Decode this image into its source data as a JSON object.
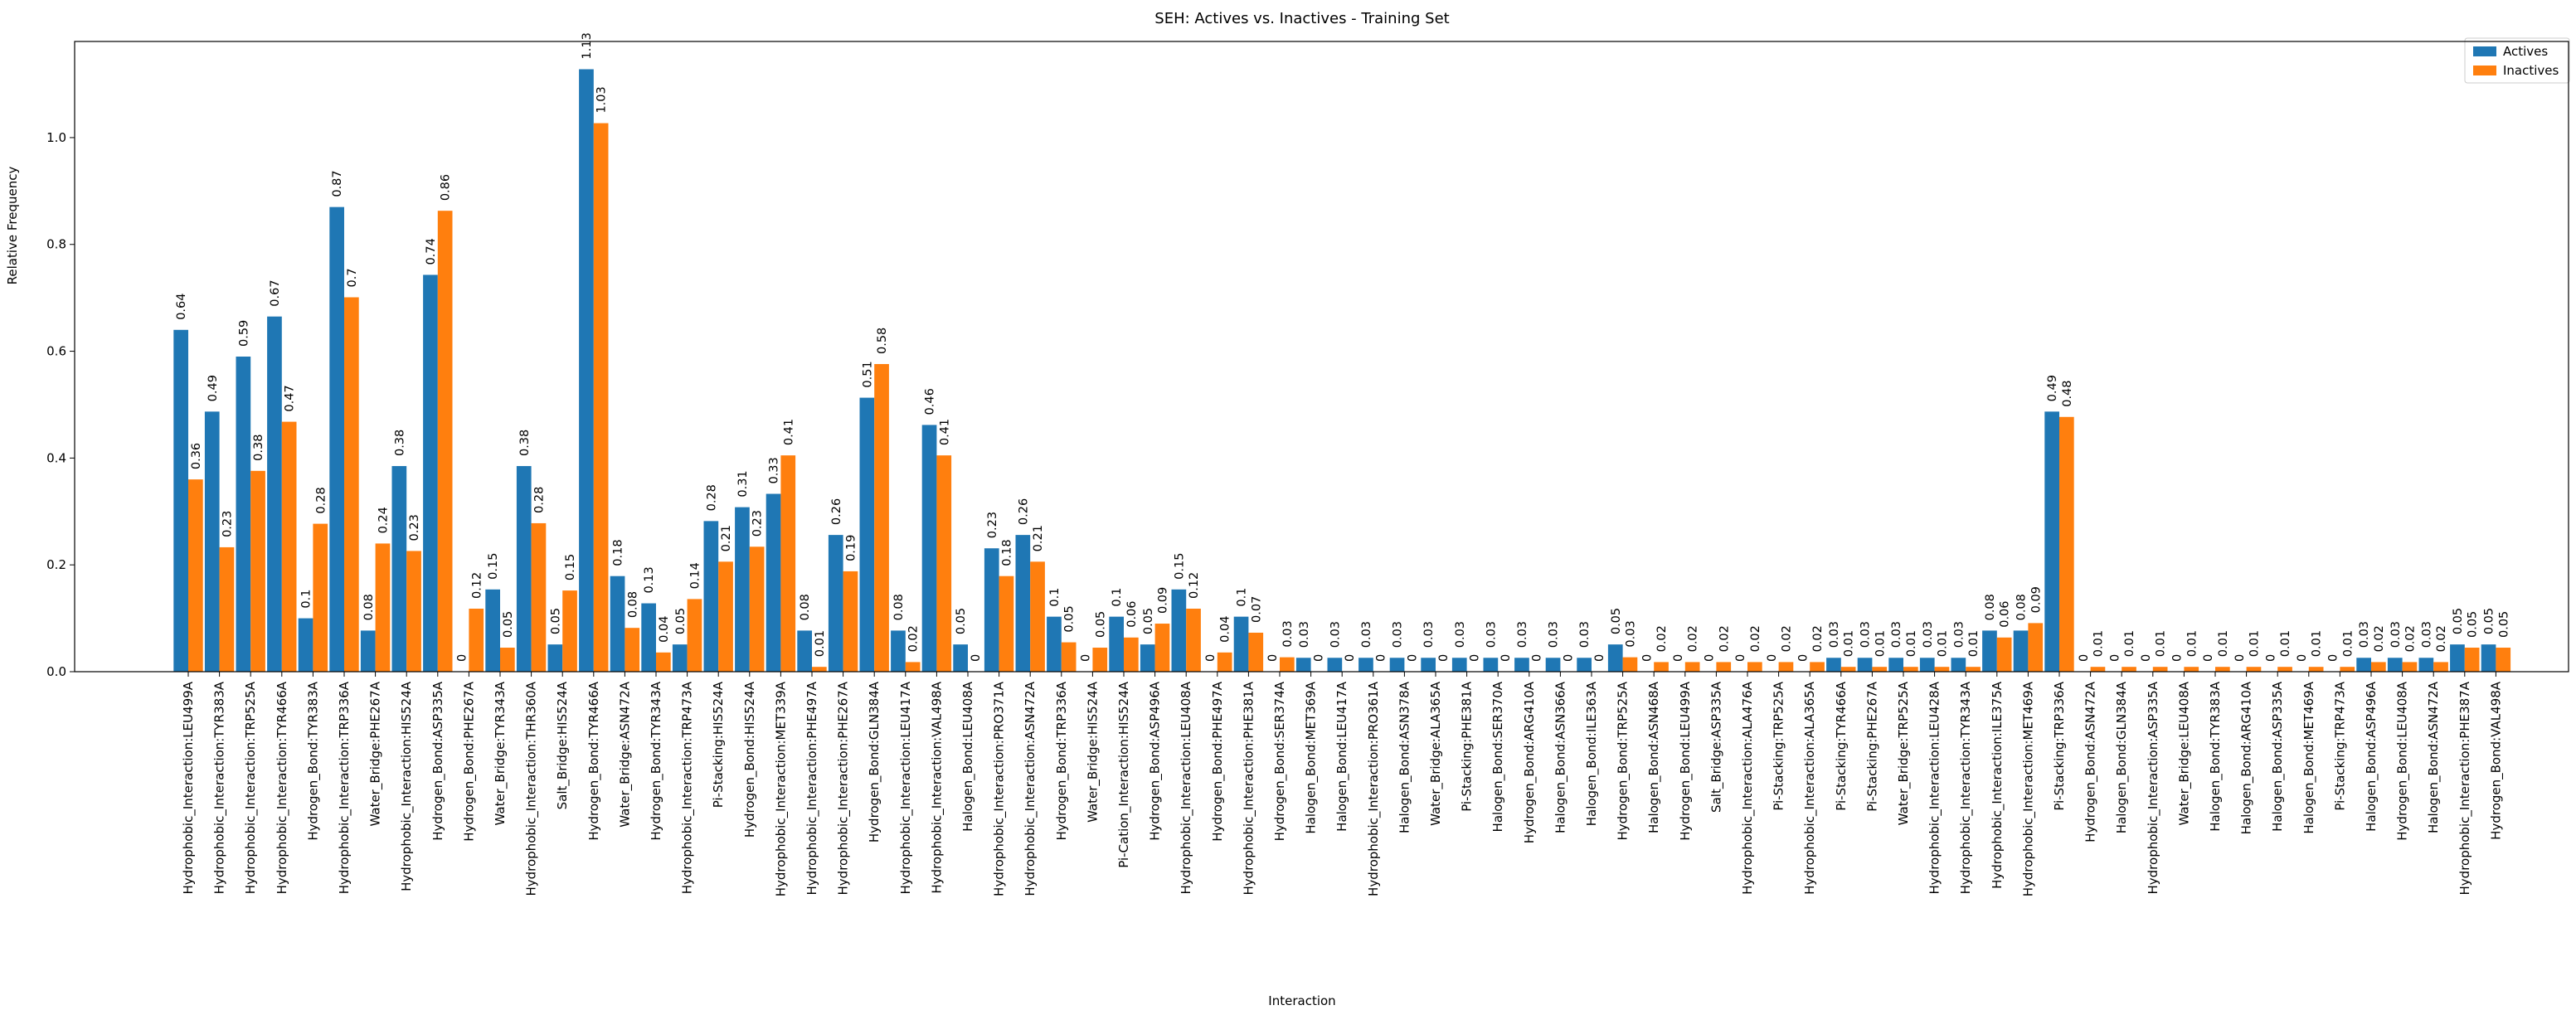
{
  "chart_data": {
    "type": "bar",
    "title": "SEH: Actives vs. Inactives - Training Set",
    "xlabel": "Interaction",
    "ylabel": "Relative Frequency",
    "ylim": [
      0,
      1.18
    ],
    "yticks": [
      "0.0",
      "0.2",
      "0.4",
      "0.6",
      "0.8",
      "1.0"
    ],
    "legend_position": "top-right",
    "colors": {
      "actives": "#1f77b4",
      "inactives": "#ff7f0e"
    },
    "categories": [
      "Hydrophobic_Interaction:LEU499A",
      "Hydrophobic_Interaction:TYR383A",
      "Hydrophobic_Interaction:TRP525A",
      "Hydrophobic_Interaction:TYR466A",
      "Hydrogen_Bond:TYR383A",
      "Hydrophobic_Interaction:TRP336A",
      "Water_Bridge:PHE267A",
      "Hydrophobic_Interaction:HIS524A",
      "Hydrogen_Bond:ASP335A",
      "Hydrogen_Bond:PHE267A",
      "Water_Bridge:TYR343A",
      "Hydrophobic_Interaction:THR360A",
      "Salt_Bridge:HIS524A",
      "Hydrogen_Bond:TYR466A",
      "Water_Bridge:ASN472A",
      "Hydrogen_Bond:TYR343A",
      "Hydrophobic_Interaction:TRP473A",
      "Pi-Stacking:HIS524A",
      "Hydrogen_Bond:HIS524A",
      "Hydrophobic_Interaction:MET339A",
      "Hydrophobic_Interaction:PHE497A",
      "Hydrophobic_Interaction:PHE267A",
      "Hydrogen_Bond:GLN384A",
      "Hydrophobic_Interaction:LEU417A",
      "Hydrophobic_Interaction:VAL498A",
      "Halogen_Bond:LEU408A",
      "Hydrophobic_Interaction:PRO371A",
      "Hydrophobic_Interaction:ASN472A",
      "Hydrogen_Bond:TRP336A",
      "Water_Bridge:HIS524A",
      "Pi-Cation_Interaction:HIS524A",
      "Hydrogen_Bond:ASP496A",
      "Hydrophobic_Interaction:LEU408A",
      "Hydrogen_Bond:PHE497A",
      "Hydrophobic_Interaction:PHE381A",
      "Hydrogen_Bond:SER374A",
      "Halogen_Bond:MET369A",
      "Halogen_Bond:LEU417A",
      "Hydrophobic_Interaction:PRO361A",
      "Halogen_Bond:ASN378A",
      "Water_Bridge:ALA365A",
      "Pi-Stacking:PHE381A",
      "Halogen_Bond:SER370A",
      "Hydrogen_Bond:ARG410A",
      "Halogen_Bond:ASN366A",
      "Halogen_Bond:ILE363A",
      "Hydrogen_Bond:TRP525A",
      "Halogen_Bond:ASN468A",
      "Hydrogen_Bond:LEU499A",
      "Salt_Bridge:ASP335A",
      "Hydrophobic_Interaction:ALA476A",
      "Pi-Stacking:TRP525A",
      "Hydrophobic_Interaction:ALA365A",
      "Pi-Stacking:TYR466A",
      "Pi-Stacking:PHE267A",
      "Water_Bridge:TRP525A",
      "Hydrophobic_Interaction:LEU428A",
      "Hydrophobic_Interaction:TYR343A",
      "Hydrophobic_Interaction:ILE375A",
      "Hydrophobic_Interaction:MET469A",
      "Pi-Stacking:TRP336A",
      "Hydrogen_Bond:ASN472A",
      "Halogen_Bond:GLN384A",
      "Hydrophobic_Interaction:ASP335A",
      "Water_Bridge:LEU408A",
      "Halogen_Bond:TYR383A",
      "Halogen_Bond:ARG410A",
      "Halogen_Bond:ASP335A",
      "Halogen_Bond:MET469A",
      "Pi-Stacking:TRP473A",
      "Halogen_Bond:ASP496A",
      "Hydrogen_Bond:LEU408A",
      "Halogen_Bond:ASN472A",
      "Hydrophobic_Interaction:PHE387A",
      "Hydrogen_Bond:VAL498A"
    ],
    "series": [
      {
        "name": "Actives",
        "values": [
          0.64,
          0.487,
          0.59,
          0.665,
          0.1,
          0.87,
          0.077,
          0.385,
          0.743,
          0,
          0.154,
          0.385,
          0.051,
          1.128,
          0.179,
          0.128,
          0.051,
          0.282,
          0.308,
          0.333,
          0.077,
          0.256,
          0.513,
          0.077,
          0.462,
          0.051,
          0.231,
          0.256,
          0.103,
          0,
          0.103,
          0.051,
          0.154,
          0,
          0.103,
          0,
          0.026,
          0.026,
          0.026,
          0.026,
          0.026,
          0.026,
          0.026,
          0.026,
          0.026,
          0.026,
          0.051,
          0,
          0,
          0,
          0,
          0,
          0,
          0.026,
          0.026,
          0.026,
          0.026,
          0.026,
          0.077,
          0.077,
          0.487,
          0,
          0,
          0,
          0,
          0,
          0,
          0,
          0,
          0,
          0.026,
          0.026,
          0.026,
          0.051,
          0.051
        ],
        "labels": [
          "0.64",
          "0.49",
          "0.59",
          "0.67",
          "0.1",
          "0.87",
          "0.08",
          "0.38",
          "0.74",
          "0",
          "0.15",
          "0.38",
          "0.05",
          "1.13",
          "0.18",
          "0.13",
          "0.05",
          "0.28",
          "0.31",
          "0.33",
          "0.08",
          "0.26",
          "0.51",
          "0.08",
          "0.46",
          "0.05",
          "0.23",
          "0.26",
          "0.1",
          "0",
          "0.1",
          "0.05",
          "0.15",
          "0",
          "0.1",
          "0",
          "0.03",
          "0.03",
          "0.03",
          "0.03",
          "0.03",
          "0.03",
          "0.03",
          "0.03",
          "0.03",
          "0.03",
          "0.05",
          "0",
          "0",
          "0",
          "0",
          "0",
          "0",
          "0.03",
          "0.03",
          "0.03",
          "0.03",
          "0.03",
          "0.08",
          "0.08",
          "0.49",
          "0",
          "0",
          "0",
          "0",
          "0",
          "0",
          "0",
          "0",
          "0",
          "0.03",
          "0.03",
          "0.03",
          "0.05",
          "0.05"
        ]
      },
      {
        "name": "Inactives",
        "values": [
          0.36,
          0.233,
          0.376,
          0.468,
          0.277,
          0.701,
          0.24,
          0.226,
          0.863,
          0.118,
          0.045,
          0.278,
          0.152,
          1.027,
          0.082,
          0.036,
          0.136,
          0.206,
          0.234,
          0.405,
          0.009,
          0.188,
          0.576,
          0.018,
          0.405,
          0,
          0.179,
          0.206,
          0.055,
          0.045,
          0.064,
          0.09,
          0.118,
          0.036,
          0.073,
          0.027,
          0,
          0,
          0,
          0,
          0,
          0,
          0,
          0,
          0,
          0,
          0.027,
          0.018,
          0.018,
          0.018,
          0.018,
          0.018,
          0.018,
          0.009,
          0.009,
          0.009,
          0.009,
          0.009,
          0.064,
          0.091,
          0.477,
          0.009,
          0.009,
          0.009,
          0.009,
          0.009,
          0.009,
          0.009,
          0.009,
          0.009,
          0.018,
          0.018,
          0.018,
          0.045,
          0.045
        ],
        "labels": [
          "0.36",
          "0.23",
          "0.38",
          "0.47",
          "0.28",
          "0.7",
          "0.24",
          "0.23",
          "0.86",
          "0.12",
          "0.05",
          "0.28",
          "0.15",
          "1.03",
          "0.08",
          "0.04",
          "0.14",
          "0.21",
          "0.23",
          "0.41",
          "0.01",
          "0.19",
          "0.58",
          "0.02",
          "0.41",
          "0",
          "0.18",
          "0.21",
          "0.05",
          "0.05",
          "0.06",
          "0.09",
          "0.12",
          "0.04",
          "0.07",
          "0.03",
          "0",
          "0",
          "0",
          "0",
          "0",
          "0",
          "0",
          "0",
          "0",
          "0",
          "0.03",
          "0.02",
          "0.02",
          "0.02",
          "0.02",
          "0.02",
          "0.02",
          "0.01",
          "0.01",
          "0.01",
          "0.01",
          "0.01",
          "0.06",
          "0.09",
          "0.48",
          "0.01",
          "0.01",
          "0.01",
          "0.01",
          "0.01",
          "0.01",
          "0.01",
          "0.01",
          "0.01",
          "0.02",
          "0.02",
          "0.02",
          "0.05",
          "0.05"
        ]
      }
    ]
  }
}
